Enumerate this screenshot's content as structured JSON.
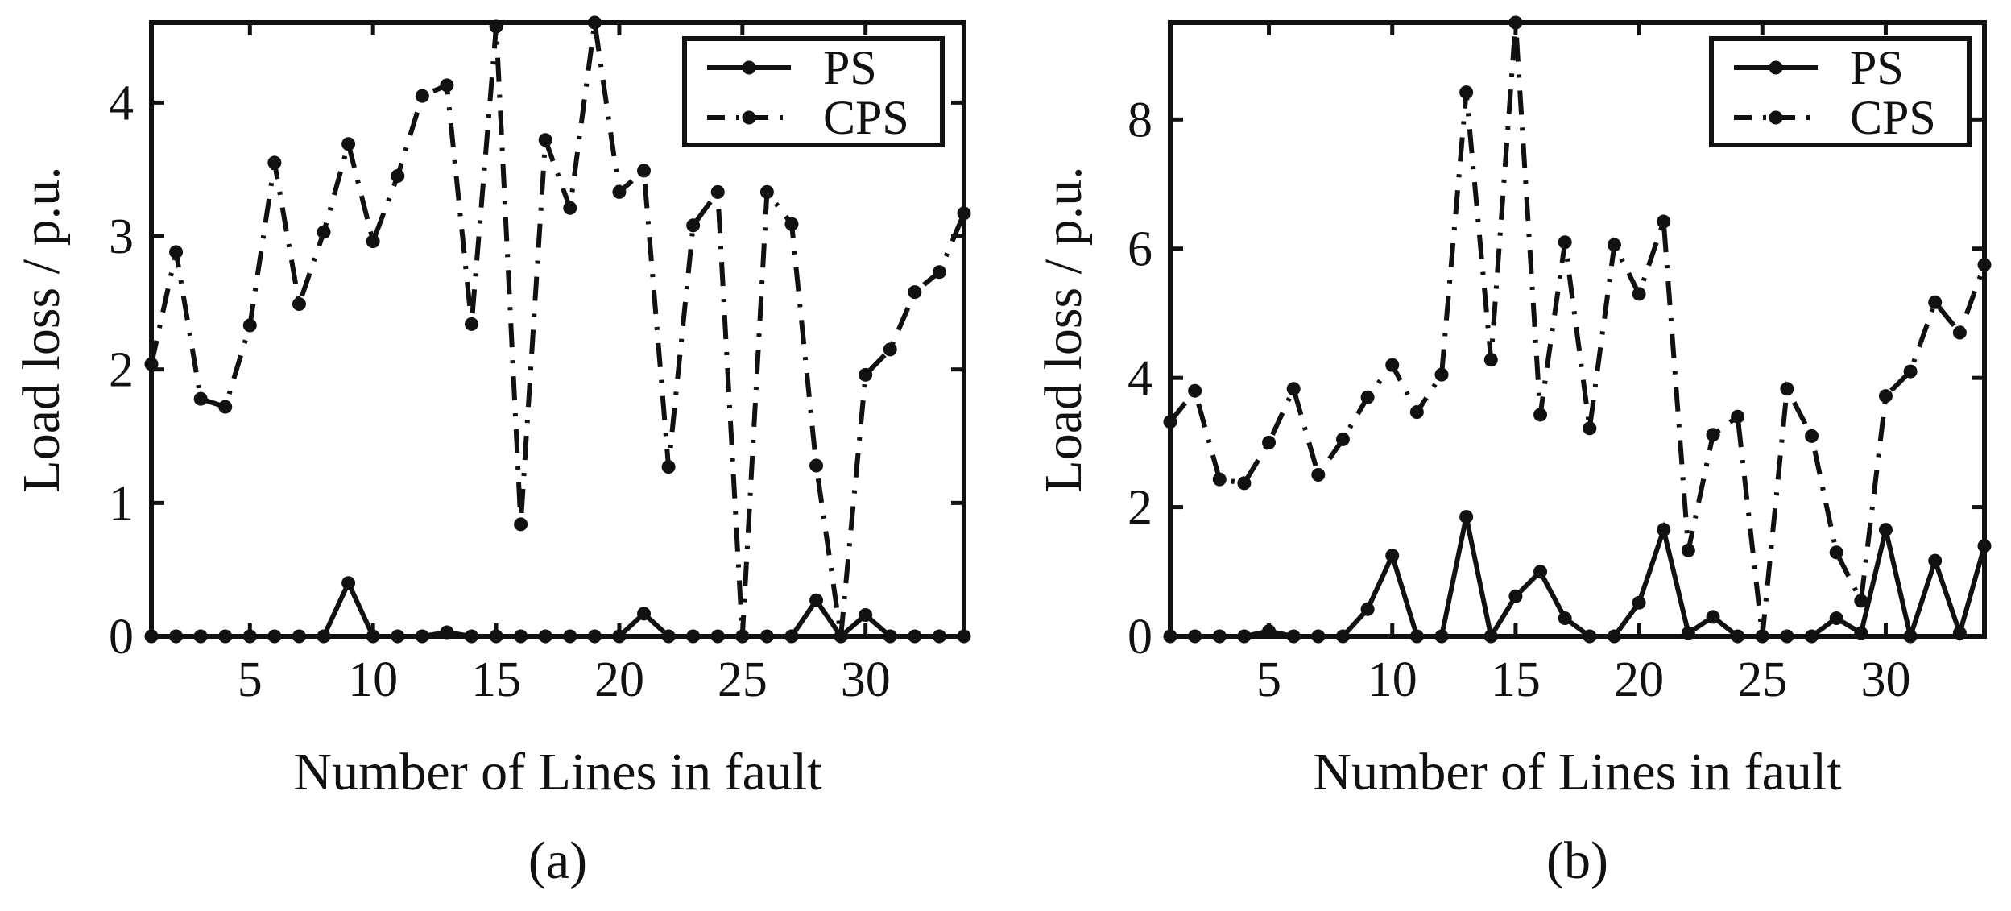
{
  "figure": {
    "panels": [
      {
        "caption": "(a)"
      },
      {
        "caption": "(b)"
      }
    ]
  },
  "chart_data": [
    {
      "type": "line",
      "title": "",
      "caption": "(a)",
      "xlabel": "Number of Lines in fault",
      "ylabel": "Load loss / p.u.",
      "xlim": [
        1,
        34
      ],
      "ylim": [
        0,
        4.6
      ],
      "xticks": [
        5,
        10,
        15,
        20,
        25,
        30
      ],
      "yticks": [
        0,
        1,
        2,
        3,
        4
      ],
      "grid": false,
      "legend": "top-right",
      "x": [
        1,
        2,
        3,
        4,
        5,
        6,
        7,
        8,
        9,
        10,
        11,
        12,
        13,
        14,
        15,
        16,
        17,
        18,
        19,
        20,
        21,
        22,
        23,
        24,
        25,
        26,
        27,
        28,
        29,
        30,
        31,
        32,
        33,
        34
      ],
      "series": [
        {
          "name": "PS",
          "style": "solid",
          "values": [
            0,
            0,
            0,
            0,
            0,
            0,
            0,
            0,
            0.4,
            0,
            0,
            0,
            0.03,
            0,
            0,
            0,
            0,
            0,
            0,
            0,
            0.17,
            0,
            0,
            0,
            0,
            0,
            0,
            0.27,
            0,
            0.16,
            0,
            0,
            0,
            0
          ]
        },
        {
          "name": "CPS",
          "style": "dashdot",
          "values": [
            2.04,
            2.88,
            1.78,
            1.72,
            2.33,
            3.55,
            2.49,
            3.03,
            3.69,
            2.96,
            3.45,
            4.05,
            4.13,
            2.34,
            4.57,
            0.84,
            3.72,
            3.21,
            4.6,
            3.33,
            3.49,
            1.27,
            3.08,
            3.33,
            0,
            3.33,
            3.09,
            1.28,
            0,
            1.96,
            2.15,
            2.58,
            2.73,
            3.17
          ]
        }
      ]
    },
    {
      "type": "line",
      "title": "",
      "caption": "(b)",
      "xlabel": "Number of Lines in fault",
      "ylabel": "Load loss / p.u.",
      "xlim": [
        1,
        34
      ],
      "ylim": [
        0,
        9.5
      ],
      "xticks": [
        5,
        10,
        15,
        20,
        25,
        30
      ],
      "yticks": [
        0,
        2,
        4,
        6,
        8
      ],
      "grid": false,
      "legend": "top-right",
      "x": [
        1,
        2,
        3,
        4,
        5,
        6,
        7,
        8,
        9,
        10,
        11,
        12,
        13,
        14,
        15,
        16,
        17,
        18,
        19,
        20,
        21,
        22,
        23,
        24,
        25,
        26,
        27,
        28,
        29,
        30,
        31,
        32,
        33,
        34
      ],
      "series": [
        {
          "name": "PS",
          "style": "solid",
          "values": [
            0,
            0,
            0,
            0,
            0.08,
            0,
            0,
            0,
            0.42,
            1.25,
            0,
            0,
            1.85,
            0,
            0.62,
            1.0,
            0.28,
            0,
            0,
            0.52,
            1.65,
            0.05,
            0.3,
            0,
            0,
            0,
            0,
            0.28,
            0.05,
            1.65,
            0,
            1.17,
            0.05,
            1.4
          ]
        },
        {
          "name": "CPS",
          "style": "dashdot",
          "values": [
            3.32,
            3.8,
            2.43,
            2.37,
            3.0,
            3.83,
            2.5,
            3.05,
            3.7,
            4.2,
            3.47,
            4.05,
            8.42,
            4.28,
            9.5,
            3.43,
            6.1,
            3.22,
            6.06,
            5.3,
            6.42,
            1.33,
            3.12,
            3.4,
            0,
            3.83,
            3.1,
            1.3,
            0.55,
            3.72,
            4.1,
            5.17,
            4.7,
            5.75
          ]
        }
      ]
    }
  ]
}
